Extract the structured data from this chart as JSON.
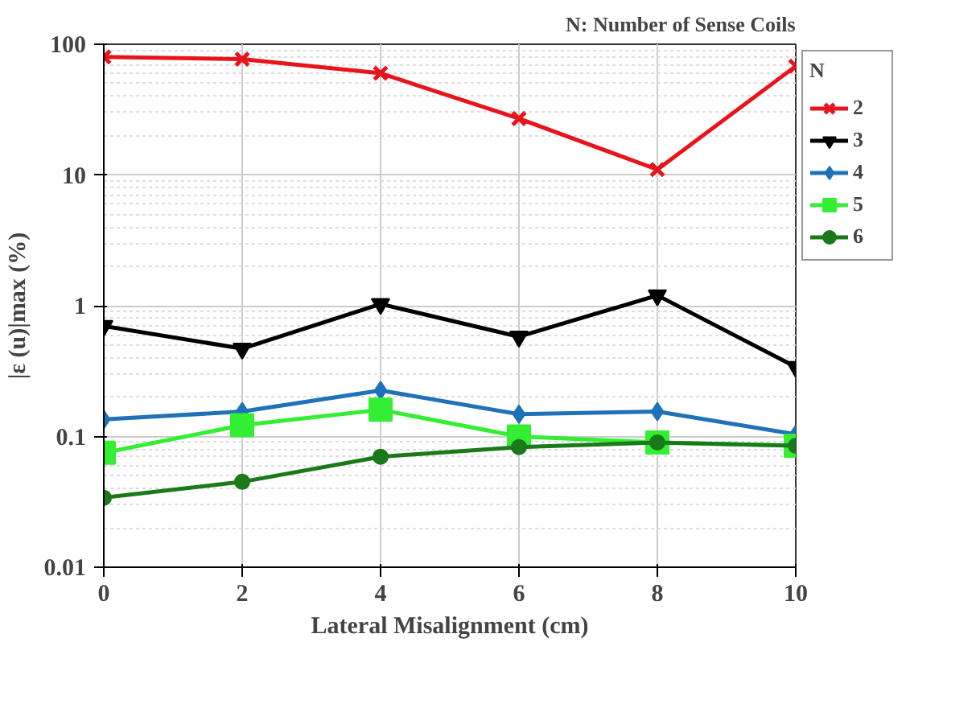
{
  "chart_data": {
    "type": "line",
    "title": "N: Number of Sense Coils",
    "xlabel": "Lateral Misalignment (cm)",
    "ylabel": "|ε (u)|max (%)",
    "legend_title": "N",
    "x": [
      0,
      2,
      4,
      6,
      8,
      10
    ],
    "series": [
      {
        "name": "2",
        "color": "#e8141c",
        "marker": "cross",
        "values": [
          80,
          77,
          60,
          27,
          11,
          68
        ]
      },
      {
        "name": "3",
        "color": "#000000",
        "marker": "triangle",
        "values": [
          0.7,
          0.47,
          1.03,
          0.58,
          1.2,
          0.34
        ]
      },
      {
        "name": "4",
        "color": "#1f72b8",
        "marker": "diamond",
        "values": [
          0.135,
          0.155,
          0.225,
          0.148,
          0.155,
          0.104
        ]
      },
      {
        "name": "5",
        "color": "#33ee33",
        "marker": "square",
        "values": [
          0.075,
          0.122,
          0.16,
          0.1,
          0.09,
          0.085
        ]
      },
      {
        "name": "6",
        "color": "#1a7a1a",
        "marker": "circle",
        "values": [
          0.034,
          0.045,
          0.07,
          0.083,
          0.09,
          0.085
        ]
      }
    ],
    "xlim": [
      0,
      10
    ],
    "ylim": [
      0.01,
      100
    ],
    "xticks": [
      0,
      2,
      4,
      6,
      8,
      10
    ],
    "yticks": [
      0.01,
      0.1,
      1,
      10,
      100
    ],
    "log": "y",
    "grid": true,
    "legend": "top right",
    "line_style": "solid"
  }
}
